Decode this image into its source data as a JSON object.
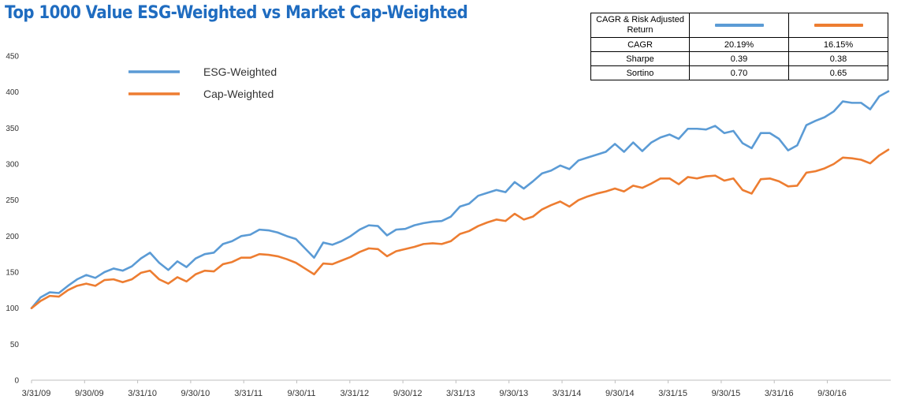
{
  "chart_data": {
    "type": "line",
    "title": "Top 1000 Value ESG-Weighted vs Market Cap-Weighted",
    "xlabel": "",
    "ylabel": "",
    "ylim": [
      0,
      450
    ],
    "yticks": [
      0,
      50,
      100,
      150,
      200,
      250,
      300,
      350,
      400,
      450
    ],
    "xticks": [
      "3/31/09",
      "9/30/09",
      "3/31/10",
      "9/30/10",
      "3/31/11",
      "9/30/11",
      "3/31/12",
      "9/30/12",
      "3/31/13",
      "9/30/13",
      "3/31/14",
      "9/30/14",
      "3/31/15",
      "9/30/15",
      "3/31/16",
      "9/30/16"
    ],
    "grid": false,
    "legend": "top-left",
    "series": [
      {
        "name": "ESG-Weighted",
        "color": "#5b9bd5",
        "values": [
          100,
          115,
          122,
          121,
          131,
          140,
          146,
          142,
          150,
          155,
          152,
          158,
          169,
          177,
          163,
          153,
          165,
          157,
          169,
          175,
          177,
          189,
          193,
          200,
          202,
          209,
          208,
          205,
          200,
          196,
          183,
          170,
          191,
          188,
          193,
          200,
          209,
          215,
          214,
          201,
          209,
          210,
          215,
          218,
          220,
          221,
          227,
          241,
          245,
          256,
          260,
          264,
          261,
          275,
          266,
          276,
          287,
          291,
          298,
          293,
          305,
          309,
          313,
          317,
          328,
          317,
          330,
          318,
          330,
          337,
          341,
          335,
          349,
          349,
          348,
          353,
          343,
          346,
          329,
          322,
          343,
          343,
          335,
          319,
          326,
          354,
          360,
          365,
          373,
          387,
          385,
          385,
          376,
          394,
          401
        ]
      },
      {
        "name": "Cap-Weighted",
        "color": "#ed7d31",
        "values": [
          100,
          110,
          117,
          116,
          125,
          131,
          134,
          131,
          139,
          140,
          136,
          140,
          149,
          152,
          140,
          134,
          143,
          137,
          147,
          152,
          151,
          161,
          164,
          170,
          170,
          175,
          174,
          172,
          168,
          163,
          155,
          147,
          162,
          161,
          166,
          171,
          178,
          183,
          182,
          172,
          179,
          182,
          185,
          189,
          190,
          189,
          193,
          203,
          207,
          214,
          219,
          223,
          221,
          231,
          223,
          227,
          237,
          243,
          248,
          241,
          250,
          255,
          259,
          262,
          266,
          262,
          270,
          267,
          273,
          280,
          280,
          272,
          282,
          280,
          283,
          284,
          277,
          280,
          264,
          259,
          279,
          280,
          276,
          269,
          270,
          288,
          290,
          294,
          300,
          309,
          308,
          306,
          301,
          312,
          320
        ]
      }
    ]
  },
  "legend": {
    "esg_label": "ESG-Weighted",
    "cap_label": "Cap-Weighted"
  },
  "stats_table": {
    "header": "CAGR & Risk Adjusted Return",
    "rows": [
      {
        "label": "CAGR",
        "esg": "20.19%",
        "cap": "16.15%"
      },
      {
        "label": "Sharpe",
        "esg": "0.39",
        "cap": "0.38"
      },
      {
        "label": "Sortino",
        "esg": "0.70",
        "cap": "0.65"
      }
    ]
  }
}
